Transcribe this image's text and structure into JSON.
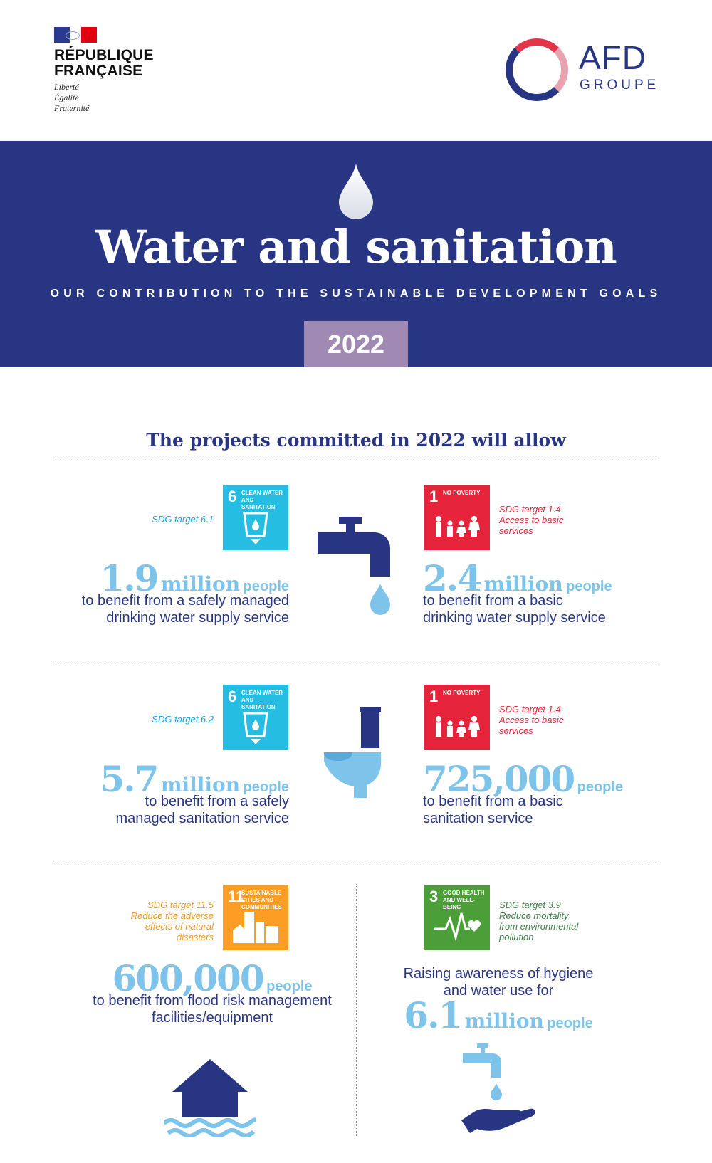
{
  "header": {
    "rf_name": "RÉPUBLIQUE\nFRANÇAISE",
    "rf_line1": "RÉPUBLIQUE",
    "rf_line2": "FRANÇAISE",
    "rf_motto": [
      "Liberté",
      "Égalité",
      "Fraternité"
    ],
    "afd_logo": "AFD",
    "afd_sub": "GROUPE"
  },
  "banner": {
    "title": "Water and sanitation",
    "subtitle": "OUR CONTRIBUTION TO THE SUSTAINABLE DEVELOPMENT GOALS",
    "year": "2022"
  },
  "main": {
    "heading": "The projects committed in 2022 will allow",
    "items": [
      {
        "sdg_num": "6",
        "sdg_label": "CLEAN WATER AND SANITATION",
        "sdg_color": "#26bde2",
        "target": "SDG target 6.1",
        "number": "1.9",
        "unit": "million",
        "people": "people",
        "desc1": "to benefit from a safely managed",
        "desc2": "drinking water supply service"
      },
      {
        "sdg_num": "1",
        "sdg_label": "NO POVERTY",
        "sdg_color": "#e5243b",
        "target1": "SDG target 1.4",
        "target2": "Access to basic",
        "target3": "services",
        "number": "2.4",
        "unit": "million",
        "people": "people",
        "desc1": "to benefit from a basic",
        "desc2": "drinking water supply service"
      },
      {
        "sdg_num": "6",
        "sdg_label": "CLEAN WATER AND SANITATION",
        "sdg_color": "#26bde2",
        "target": "SDG target 6.2",
        "number": "5.7",
        "unit": "million",
        "people": "people",
        "desc1": "to benefit from a safely",
        "desc2": "managed sanitation service"
      },
      {
        "sdg_num": "1",
        "sdg_label": "NO POVERTY",
        "sdg_color": "#e5243b",
        "target1": "SDG target 1.4",
        "target2": "Access to basic",
        "target3": "services",
        "number": "725,000",
        "people": "people",
        "desc1": "to benefit from a basic",
        "desc2": "sanitation service"
      },
      {
        "sdg_num": "11",
        "sdg_label": "SUSTAINABLE CITIES AND COMMUNITIES",
        "sdg_color": "#fd9d24",
        "target1": "SDG target 11.5",
        "target2": "Reduce the adverse",
        "target3": "effects of natural",
        "target4": "disasters",
        "number": "600,000",
        "people": "people",
        "desc1": "to benefit from flood risk management",
        "desc2": "facilities/equipment"
      },
      {
        "sdg_num": "3",
        "sdg_label": "GOOD HEALTH AND WELL-BEING",
        "sdg_color": "#4c9f38",
        "target1": "SDG target 3.9",
        "target2": "Reduce mortality",
        "target3": "from environmental",
        "target4": "pollution",
        "pre1": "Raising awareness of hygiene",
        "pre2": "and water use for",
        "number": "6.1",
        "unit": "million",
        "people": "people"
      }
    ]
  },
  "icons": [
    "water-drop-icon",
    "water-tap-icon",
    "toilet-icon",
    "flooded-house-icon",
    "handwashing-icon"
  ]
}
